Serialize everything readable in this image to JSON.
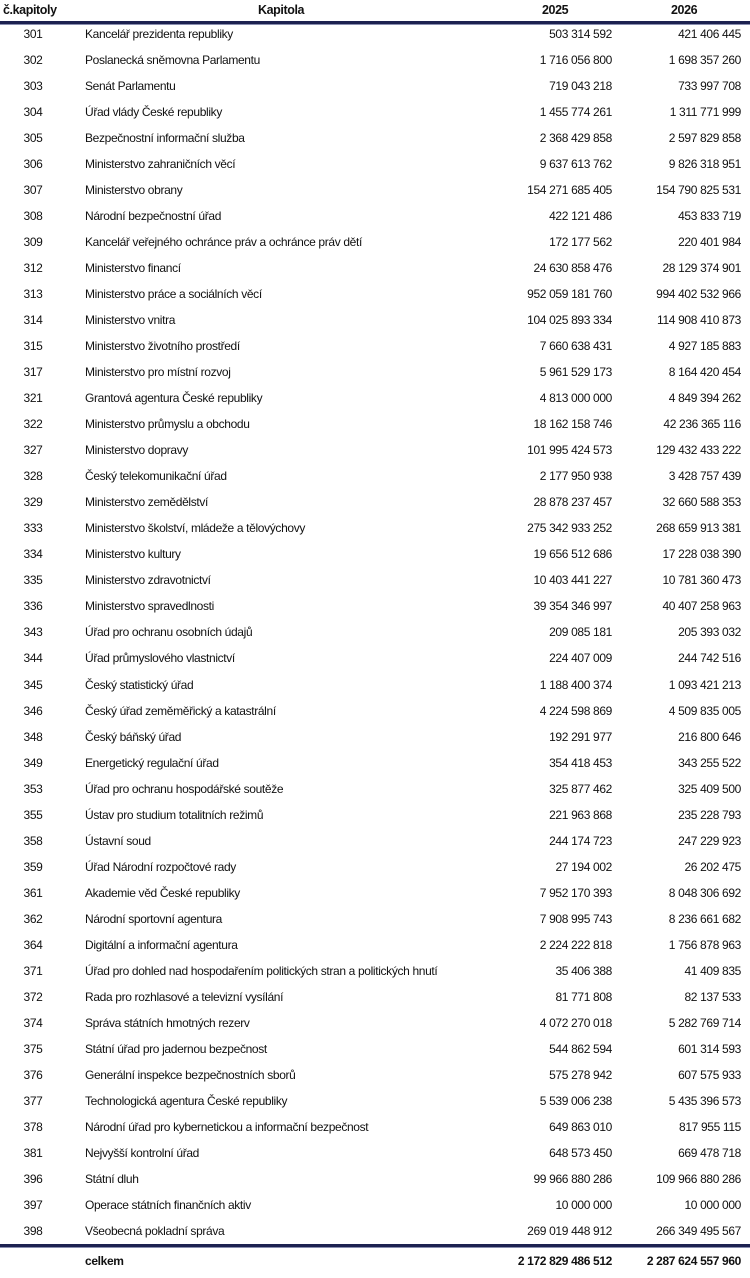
{
  "header": {
    "num": "č.kapitoly",
    "name": "Kapitola",
    "y2025": "2025",
    "y2026": "2026"
  },
  "rows": [
    {
      "num": "301",
      "name": "Kancelář prezidenta republiky",
      "y2025": "503 314 592",
      "y2026": "421 406 445"
    },
    {
      "num": "302",
      "name": "Poslanecká sněmovna Parlamentu",
      "y2025": "1 716 056 800",
      "y2026": "1 698 357 260"
    },
    {
      "num": "303",
      "name": "Senát Parlamentu",
      "y2025": "719 043 218",
      "y2026": "733 997 708"
    },
    {
      "num": "304",
      "name": "Úřad vlády České republiky",
      "y2025": "1 455 774 261",
      "y2026": "1 311 771 999"
    },
    {
      "num": "305",
      "name": "Bezpečnostní informační služba",
      "y2025": "2 368 429 858",
      "y2026": "2 597 829 858"
    },
    {
      "num": "306",
      "name": "Ministerstvo zahraničních věcí",
      "y2025": "9 637 613 762",
      "y2026": "9 826 318 951"
    },
    {
      "num": "307",
      "name": "Ministerstvo obrany",
      "y2025": "154 271 685 405",
      "y2026": "154 790 825 531"
    },
    {
      "num": "308",
      "name": "Národní bezpečnostní úřad",
      "y2025": "422 121 486",
      "y2026": "453 833 719"
    },
    {
      "num": "309",
      "name": "Kancelář veřejného ochránce práv a ochránce práv dětí",
      "y2025": "172 177 562",
      "y2026": "220 401 984"
    },
    {
      "num": "312",
      "name": "Ministerstvo financí",
      "y2025": "24 630 858 476",
      "y2026": "28 129 374 901"
    },
    {
      "num": "313",
      "name": "Ministerstvo práce a sociálních věcí",
      "y2025": "952 059 181 760",
      "y2026": "994 402 532 966"
    },
    {
      "num": "314",
      "name": "Ministerstvo vnitra",
      "y2025": "104 025 893 334",
      "y2026": "114 908 410 873"
    },
    {
      "num": "315",
      "name": "Ministerstvo životního prostředí",
      "y2025": "7 660 638 431",
      "y2026": "4 927 185 883"
    },
    {
      "num": "317",
      "name": "Ministerstvo pro místní rozvoj",
      "y2025": "5 961 529 173",
      "y2026": "8 164 420 454"
    },
    {
      "num": "321",
      "name": "Grantová agentura České republiky",
      "y2025": "4 813 000 000",
      "y2026": "4 849 394 262"
    },
    {
      "num": "322",
      "name": "Ministerstvo průmyslu a obchodu",
      "y2025": "18 162 158 746",
      "y2026": "42 236 365 116"
    },
    {
      "num": "327",
      "name": "Ministerstvo dopravy",
      "y2025": "101 995 424 573",
      "y2026": "129 432 433 222"
    },
    {
      "num": "328",
      "name": "Český telekomunikační úřad",
      "y2025": "2 177 950 938",
      "y2026": "3 428 757 439"
    },
    {
      "num": "329",
      "name": "Ministerstvo zemědělství",
      "y2025": "28 878 237 457",
      "y2026": "32 660 588 353"
    },
    {
      "num": "333",
      "name": "Ministerstvo školství, mládeže a tělovýchovy",
      "y2025": "275 342 933 252",
      "y2026": "268 659 913 381"
    },
    {
      "num": "334",
      "name": "Ministerstvo kultury",
      "y2025": "19 656 512 686",
      "y2026": "17 228 038 390"
    },
    {
      "num": "335",
      "name": "Ministerstvo zdravotnictví",
      "y2025": "10 403 441 227",
      "y2026": "10 781 360 473"
    },
    {
      "num": "336",
      "name": "Ministerstvo spravedlnosti",
      "y2025": "39 354 346 997",
      "y2026": "40 407 258 963"
    },
    {
      "num": "343",
      "name": "Úřad pro ochranu osobních údajů",
      "y2025": "209 085 181",
      "y2026": "205 393 032"
    },
    {
      "num": "344",
      "name": "Úřad průmyslového vlastnictví",
      "y2025": "224 407 009",
      "y2026": "244 742 516"
    },
    {
      "num": "345",
      "name": "Český statistický úřad",
      "y2025": "1 188 400 374",
      "y2026": "1 093 421 213"
    },
    {
      "num": "346",
      "name": "Český úřad zeměměřický a katastrální",
      "y2025": "4 224 598 869",
      "y2026": "4 509 835 005"
    },
    {
      "num": "348",
      "name": "Český báňský úřad",
      "y2025": "192 291 977",
      "y2026": "216 800 646"
    },
    {
      "num": "349",
      "name": "Energetický regulační úřad",
      "y2025": "354 418 453",
      "y2026": "343 255 522"
    },
    {
      "num": "353",
      "name": "Úřad pro ochranu hospodářské soutěže",
      "y2025": "325 877 462",
      "y2026": "325 409 500"
    },
    {
      "num": "355",
      "name": "Ústav pro studium totalitních režimů",
      "y2025": "221 963 868",
      "y2026": "235 228 793"
    },
    {
      "num": "358",
      "name": "Ústavní soud",
      "y2025": "244 174 723",
      "y2026": "247 229 923"
    },
    {
      "num": "359",
      "name": "Úřad Národní rozpočtové rady",
      "y2025": "27 194 002",
      "y2026": "26 202 475"
    },
    {
      "num": "361",
      "name": "Akademie věd České republiky",
      "y2025": "7 952 170 393",
      "y2026": "8 048 306 692"
    },
    {
      "num": "362",
      "name": "Národní sportovní agentura",
      "y2025": "7 908 995 743",
      "y2026": "8 236 661 682"
    },
    {
      "num": "364",
      "name": "Digitální a informační agentura",
      "y2025": "2 224 222 818",
      "y2026": "1 756 878 963"
    },
    {
      "num": "371",
      "name": "Úřad pro dohled nad hospodařením politických stran a politických hnutí",
      "y2025": "35 406 388",
      "y2026": "41 409 835"
    },
    {
      "num": "372",
      "name": "Rada pro rozhlasové a televizní vysílání",
      "y2025": "81 771 808",
      "y2026": "82 137 533"
    },
    {
      "num": "374",
      "name": "Správa státních hmotných rezerv",
      "y2025": "4 072 270 018",
      "y2026": "5 282 769 714"
    },
    {
      "num": "375",
      "name": "Státní úřad pro jadernou bezpečnost",
      "y2025": "544 862 594",
      "y2026": "601 314 593"
    },
    {
      "num": "376",
      "name": "Generální inspekce bezpečnostních sborů",
      "y2025": "575 278 942",
      "y2026": "607 575 933"
    },
    {
      "num": "377",
      "name": "Technologická agentura České republiky",
      "y2025": "5 539 006 238",
      "y2026": "5 435 396 573"
    },
    {
      "num": "378",
      "name": "Národní úřad pro kybernetickou a informační bezpečnost",
      "y2025": "649 863 010",
      "y2026": "817 955 115"
    },
    {
      "num": "381",
      "name": "Nejvyšší kontrolní úřad",
      "y2025": "648 573 450",
      "y2026": "669 478 718"
    },
    {
      "num": "396",
      "name": "Státní dluh",
      "y2025": "99 966 880 286",
      "y2026": "109 966 880 286"
    },
    {
      "num": "397",
      "name": "Operace státních finančních aktiv",
      "y2025": "10 000 000",
      "y2026": "10 000 000"
    },
    {
      "num": "398",
      "name": "Všeobecná pokladní správa",
      "y2025": "269 019 448 912",
      "y2026": "266 349 495 567"
    }
  ],
  "total": {
    "label": "celkem",
    "y2025": "2 172 829 486 512",
    "y2026": "2 287 624 557 960"
  },
  "colors": {
    "rule": "#1c2150"
  }
}
